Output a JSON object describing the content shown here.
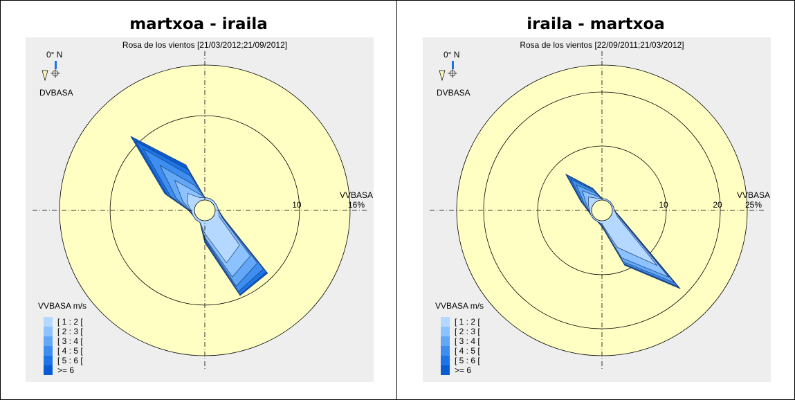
{
  "chart_data": [
    {
      "type": "wind-rose",
      "panel_title": "martxoa - iraila",
      "title": "Rosa de los vientos [21/03/2012;21/09/2012]",
      "north_label": "0° N",
      "direction_label": "DVBASA",
      "speed_label": "VVBASA",
      "ring_labels": [
        "10"
      ],
      "ring_values": [
        10
      ],
      "max_label": "16%",
      "rmax": 16,
      "legend_title": "VVBASA m/s",
      "legend_items": [
        "[ 1 : 2 [",
        "[ 2 : 3 [",
        "[ 3 : 4 [",
        "[ 4 : 5 [",
        "[ 5 : 6 [",
        ">= 6"
      ],
      "legend_colors": [
        "#b4d8ff",
        "#8cc2ff",
        "#62a8f6",
        "#3d8ef0",
        "#1c74e6",
        "#0a5cd4"
      ],
      "directions_deg": [
        0,
        22.5,
        45,
        67.5,
        90,
        112.5,
        135,
        157.5,
        180,
        202.5,
        225,
        247.5,
        270,
        292.5,
        315,
        337.5
      ],
      "series": [
        {
          "name": "[ 1 : 2 [",
          "values": [
            0.3,
            0.3,
            0.3,
            0.3,
            0.4,
            0.6,
            4.6,
            5.5,
            1.5,
            0.3,
            0.3,
            0.3,
            0.4,
            1.0,
            1.6,
            0.4
          ]
        },
        {
          "name": "[ 2 : 3 [",
          "values": [
            0.3,
            0.3,
            0.3,
            0.3,
            0.4,
            1.0,
            6.4,
            7.3,
            2.0,
            0.3,
            0.3,
            0.3,
            0.5,
            1.6,
            3.8,
            1.0
          ]
        },
        {
          "name": "[ 3 : 4 [",
          "values": [
            0.3,
            0.3,
            0.3,
            0.3,
            0.4,
            1.1,
            7.6,
            8.5,
            2.1,
            0.3,
            0.3,
            0.3,
            0.6,
            2.4,
            6.3,
            2.0
          ]
        },
        {
          "name": "[ 4 : 5 [",
          "values": [
            0.3,
            0.3,
            0.3,
            0.3,
            0.4,
            1.2,
            8.6,
            9.2,
            2.3,
            0.3,
            0.3,
            0.3,
            0.6,
            3.2,
            9.1,
            3.2
          ]
        },
        {
          "name": "[ 5 : 6 [",
          "values": [
            0.3,
            0.3,
            0.3,
            0.3,
            0.4,
            1.2,
            9.1,
            9.6,
            2.5,
            0.3,
            0.3,
            0.3,
            0.7,
            3.6,
            10.4,
            4.0
          ]
        },
        {
          "name": ">= 6",
          "values": [
            0.3,
            0.3,
            0.3,
            0.3,
            0.4,
            1.2,
            9.3,
            9.7,
            2.6,
            0.3,
            0.3,
            0.3,
            0.7,
            3.9,
            11.2,
            4.6
          ]
        }
      ]
    },
    {
      "type": "wind-rose",
      "panel_title": "iraila - martxoa",
      "title": "Rosa de los vientos [22/09/2011;21/03/2012]",
      "north_label": "0° N",
      "direction_label": "DVBASA",
      "speed_label": "VVBASA",
      "ring_labels": [
        "10",
        "20"
      ],
      "ring_values": [
        10,
        20
      ],
      "max_label": "25%",
      "rmax": 25,
      "legend_title": "VVBASA m/s",
      "legend_items": [
        "[ 1 : 2 [",
        "[ 2 : 3 [",
        "[ 3 : 4 [",
        "[ 4 : 5 [",
        "[ 5 : 6 [",
        ">= 6"
      ],
      "legend_colors": [
        "#b4d8ff",
        "#8cc2ff",
        "#62a8f6",
        "#3d8ef0",
        "#1c74e6",
        "#0a5cd4"
      ],
      "directions_deg": [
        0,
        22.5,
        45,
        67.5,
        90,
        112.5,
        135,
        157.5,
        180,
        202.5,
        225,
        247.5,
        270,
        292.5,
        315,
        337.5
      ],
      "series": [
        {
          "name": "[ 1 : 2 [",
          "values": [
            0.3,
            0.3,
            0.3,
            0.3,
            0.4,
            1.2,
            12.5,
            5.5,
            0.6,
            0.3,
            0.3,
            0.3,
            0.4,
            0.8,
            1.6,
            0.5
          ]
        },
        {
          "name": "[ 2 : 3 [",
          "values": [
            0.3,
            0.3,
            0.3,
            0.3,
            0.4,
            1.6,
            15.6,
            7.6,
            0.8,
            0.3,
            0.3,
            0.3,
            0.5,
            1.2,
            3.2,
            1.0
          ]
        },
        {
          "name": "[ 3 : 4 [",
          "values": [
            0.3,
            0.3,
            0.3,
            0.3,
            0.4,
            1.8,
            17.0,
            8.4,
            1.0,
            0.3,
            0.3,
            0.3,
            0.6,
            1.7,
            4.8,
            1.6
          ]
        },
        {
          "name": "[ 4 : 5 [",
          "values": [
            0.3,
            0.3,
            0.3,
            0.3,
            0.4,
            1.9,
            18.0,
            8.8,
            1.0,
            0.3,
            0.3,
            0.3,
            0.6,
            2.0,
            6.2,
            2.1
          ]
        },
        {
          "name": "[ 5 : 6 [",
          "values": [
            0.3,
            0.3,
            0.3,
            0.3,
            0.4,
            2.0,
            18.4,
            9.0,
            1.1,
            0.3,
            0.3,
            0.3,
            0.7,
            2.2,
            7.2,
            2.4
          ]
        },
        {
          "name": ">= 6",
          "values": [
            0.3,
            0.3,
            0.3,
            0.3,
            0.4,
            2.0,
            18.6,
            9.1,
            1.1,
            0.3,
            0.3,
            0.3,
            0.7,
            2.3,
            7.6,
            2.5
          ]
        }
      ]
    }
  ]
}
